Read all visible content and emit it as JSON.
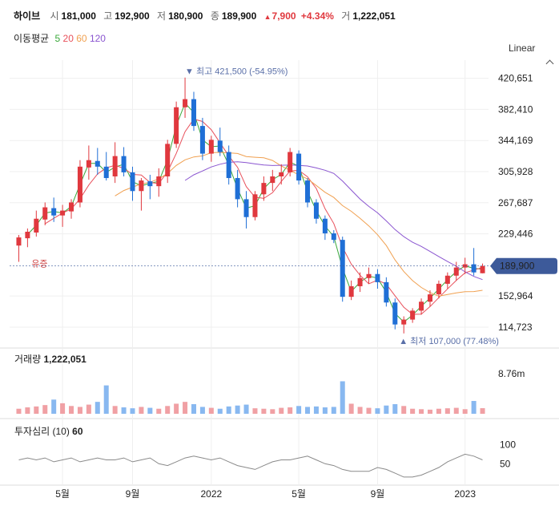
{
  "header": {
    "name": "하이브",
    "open_label": "시",
    "open": "181,000",
    "high_label": "고",
    "high": "192,900",
    "low_label": "저",
    "low": "180,900",
    "close_label": "종",
    "close": "189,900",
    "change_arrow": "▲",
    "change": "7,900",
    "change_pct": "+4.34%",
    "volume_label": "거",
    "volume": "1,222,051",
    "ma_label": "이동평균",
    "ma_periods": [
      "5",
      "20",
      "60",
      "120"
    ]
  },
  "scale_mode": "Linear",
  "colors": {
    "up": "#e0383e",
    "down": "#1f6fd6",
    "ma5": "#3aa83a",
    "ma20": "#e8505b",
    "ma60": "#f0a050",
    "ma120": "#8a55d0",
    "current_badge": "#3d5a9a"
  },
  "chart_data": {
    "type": "candlestick",
    "price_axis": {
      "ticks": [
        "420,651",
        "382,410",
        "344,169",
        "305,928",
        "267,687",
        "229,446",
        "152,964",
        "114,723"
      ],
      "tick_values": [
        420651,
        382410,
        344169,
        305928,
        267687,
        229446,
        152964,
        114723
      ],
      "range": [
        93000,
        438000
      ],
      "current_value": 189900,
      "current_label": "189,900"
    },
    "x_axis": {
      "ticks": [
        "5월",
        "9월",
        "2022",
        "5월",
        "9월",
        "2023"
      ],
      "tick_index": [
        5,
        13,
        22,
        32,
        41,
        51
      ]
    },
    "annotations": {
      "high": {
        "marker": "▼",
        "label": "최고",
        "value_text": "421,500 (-54.95%)",
        "value": 421500,
        "index": 19
      },
      "low": {
        "marker": "▲",
        "label": "최저",
        "value_text": "107,000 (77.48%)",
        "value": 107000,
        "index": 44
      },
      "event_label": "유증"
    },
    "weekly_ohlc": [
      [
        215000,
        228000,
        195000,
        225000
      ],
      [
        224000,
        236000,
        213000,
        232000
      ],
      [
        231000,
        258000,
        226000,
        248000
      ],
      [
        247000,
        268000,
        240000,
        262000
      ],
      [
        261000,
        274000,
        244000,
        252000
      ],
      [
        252000,
        265000,
        238000,
        258000
      ],
      [
        257000,
        272000,
        248000,
        268000
      ],
      [
        268000,
        320000,
        262000,
        312000
      ],
      [
        311000,
        338000,
        296000,
        320000
      ],
      [
        319000,
        335000,
        302000,
        312000
      ],
      [
        312000,
        330000,
        295000,
        298000
      ],
      [
        300000,
        342000,
        292000,
        325000
      ],
      [
        325000,
        336000,
        300000,
        305000
      ],
      [
        305000,
        312000,
        270000,
        282000
      ],
      [
        282000,
        298000,
        258000,
        295000
      ],
      [
        294000,
        302000,
        272000,
        288000
      ],
      [
        288000,
        310000,
        275000,
        300000
      ],
      [
        300000,
        345000,
        292000,
        340000
      ],
      [
        340000,
        392000,
        335000,
        385000
      ],
      [
        385000,
        421500,
        372000,
        395000
      ],
      [
        395000,
        404000,
        356000,
        362000
      ],
      [
        362000,
        372000,
        320000,
        328000
      ],
      [
        328000,
        350000,
        318000,
        345000
      ],
      [
        344000,
        360000,
        325000,
        330000
      ],
      [
        330000,
        338000,
        290000,
        298000
      ],
      [
        298000,
        308000,
        262000,
        272000
      ],
      [
        272000,
        282000,
        236000,
        250000
      ],
      [
        250000,
        282000,
        246000,
        278000
      ],
      [
        278000,
        300000,
        270000,
        292000
      ],
      [
        292000,
        308000,
        282000,
        300000
      ],
      [
        300000,
        315000,
        290000,
        305000
      ],
      [
        305000,
        335000,
        300000,
        330000
      ],
      [
        328000,
        332000,
        290000,
        295000
      ],
      [
        295000,
        298000,
        262000,
        268000
      ],
      [
        268000,
        272000,
        242000,
        248000
      ],
      [
        248000,
        252000,
        222000,
        230000
      ],
      [
        230000,
        234000,
        218000,
        222000
      ],
      [
        222000,
        226000,
        146000,
        152000
      ],
      [
        152000,
        172000,
        148000,
        165000
      ],
      [
        165000,
        182000,
        158000,
        175000
      ],
      [
        175000,
        188000,
        168000,
        180000
      ],
      [
        180000,
        186000,
        162000,
        170000
      ],
      [
        170000,
        176000,
        140000,
        145000
      ],
      [
        145000,
        150000,
        112000,
        118000
      ],
      [
        118000,
        128000,
        107000,
        124000
      ],
      [
        124000,
        138000,
        120000,
        135000
      ],
      [
        135000,
        150000,
        130000,
        146000
      ],
      [
        146000,
        160000,
        140000,
        155000
      ],
      [
        155000,
        172000,
        150000,
        168000
      ],
      [
        168000,
        182000,
        162000,
        178000
      ],
      [
        178000,
        195000,
        172000,
        188000
      ],
      [
        188000,
        200000,
        180000,
        192000
      ],
      [
        192000,
        212000,
        178000,
        182000
      ],
      [
        181000,
        192900,
        180900,
        189900
      ]
    ],
    "volume_pane": {
      "label": "거래량",
      "current_label": "1,222,051",
      "axis_tick": "8.76m",
      "axis_value": 8760000,
      "values": [
        1100000,
        1400000,
        1600000,
        1900000,
        3100000,
        2300000,
        1700000,
        1500000,
        2000000,
        2600000,
        6200000,
        1700000,
        1400000,
        1200000,
        1500000,
        1300000,
        1100000,
        1700000,
        2200000,
        2600000,
        2100000,
        1500000,
        1300000,
        1100000,
        1600000,
        1800000,
        2000000,
        1200000,
        1100000,
        1000000,
        1300000,
        1400000,
        1700000,
        1500000,
        1600000,
        1400000,
        1500000,
        7100000,
        2200000,
        1500000,
        1300000,
        1200000,
        1800000,
        2100000,
        1700000,
        1100000,
        1000000,
        900000,
        1100000,
        1200000,
        1300000,
        1000000,
        2800000,
        1222051
      ]
    },
    "sentiment_pane": {
      "label": "투자심리",
      "period": "(10)",
      "current_label": "60",
      "axis_ticks": [
        "100",
        "50"
      ],
      "axis_values": [
        100,
        50
      ],
      "range": [
        0,
        120
      ],
      "values": [
        60,
        65,
        60,
        65,
        55,
        60,
        65,
        55,
        60,
        65,
        60,
        60,
        65,
        55,
        60,
        65,
        50,
        45,
        55,
        65,
        70,
        65,
        60,
        65,
        55,
        45,
        40,
        35,
        45,
        55,
        60,
        60,
        65,
        70,
        60,
        50,
        45,
        35,
        30,
        30,
        30,
        40,
        35,
        25,
        15,
        15,
        20,
        30,
        40,
        55,
        65,
        75,
        70,
        60
      ]
    }
  }
}
